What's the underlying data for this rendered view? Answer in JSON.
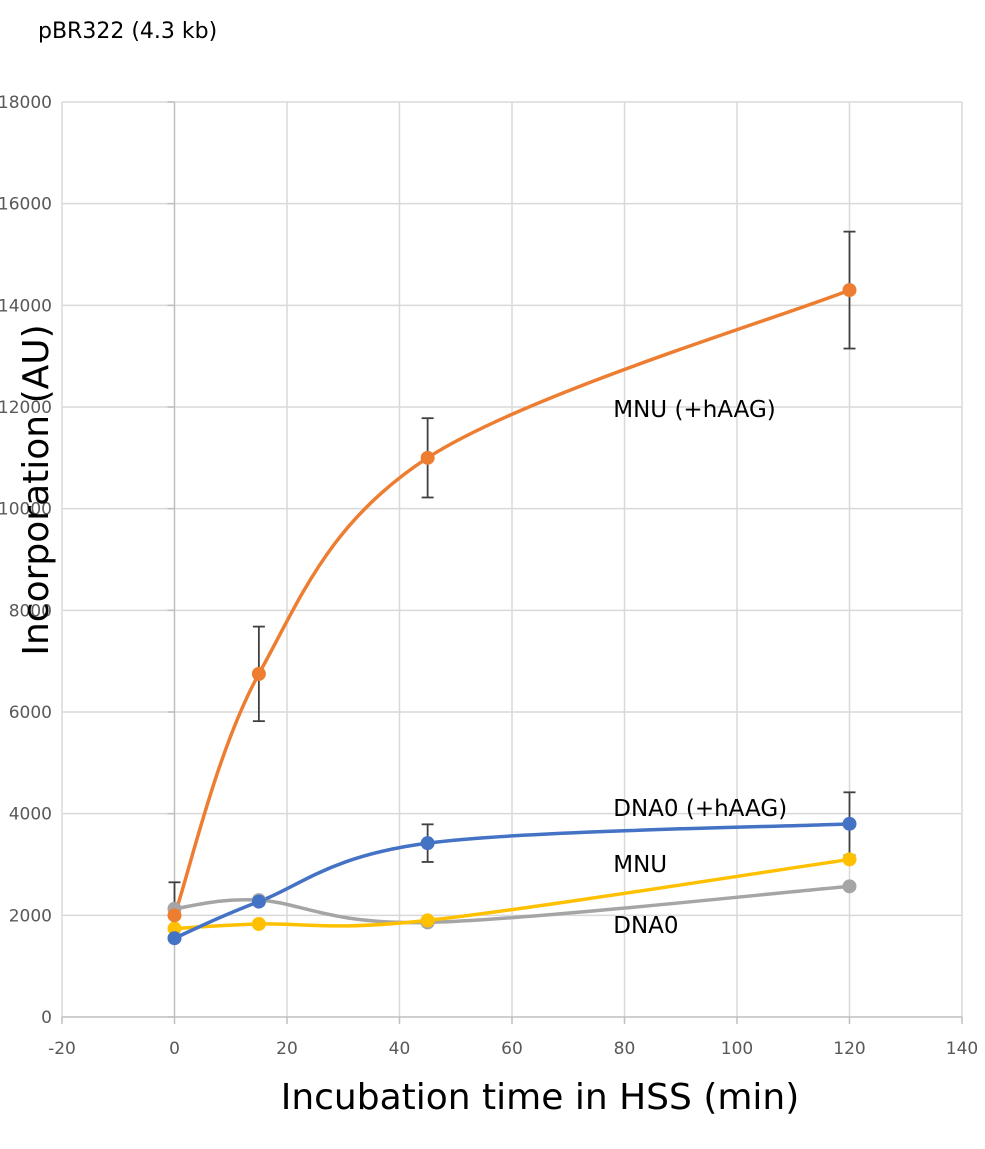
{
  "chart_data": {
    "type": "line",
    "title": "pBR322 (4.3 kb)",
    "xlabel": "Incubation time in HSS (min)",
    "ylabel": "Incorporation (AU)",
    "xlim": [
      -20,
      140
    ],
    "ylim": [
      0,
      18000
    ],
    "x_ticks": [
      -20,
      0,
      20,
      40,
      60,
      80,
      100,
      120,
      140
    ],
    "y_ticks": [
      0,
      2000,
      4000,
      6000,
      8000,
      10000,
      12000,
      14000,
      16000,
      18000
    ],
    "grid": true,
    "legend": "none",
    "x": [
      0,
      15,
      45,
      120
    ],
    "series": [
      {
        "name": "MNU (+hAAG)",
        "color": "#ED7D31",
        "values": [
          2000,
          6750,
          11000,
          14300
        ],
        "error": [
          null,
          930,
          780,
          1150
        ]
      },
      {
        "name": "DNA0 (+hAAG)",
        "color": "#4472C4",
        "values": [
          1550,
          2270,
          3420,
          3800
        ],
        "error": [
          null,
          null,
          370,
          620
        ]
      },
      {
        "name": "MNU",
        "color": "#FFC000",
        "values": [
          1740,
          1830,
          1900,
          3100
        ],
        "error": [
          null,
          null,
          null,
          null
        ]
      },
      {
        "name": "DNA0",
        "color": "#A5A5A5",
        "values": [
          2130,
          2300,
          1860,
          2570
        ],
        "error": [
          520,
          null,
          null,
          null
        ]
      }
    ]
  }
}
